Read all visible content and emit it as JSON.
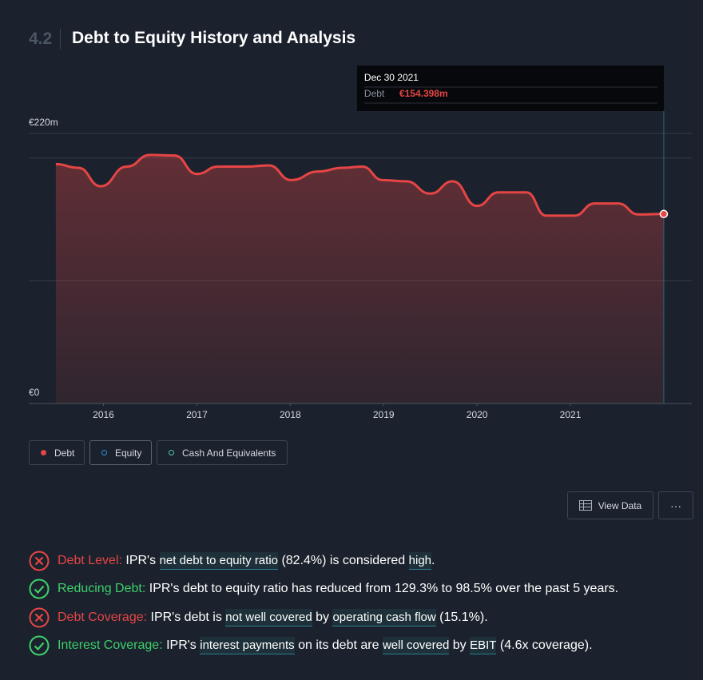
{
  "header": {
    "number": "4.2",
    "title": "Debt to Equity History and Analysis"
  },
  "chart_data": {
    "type": "line",
    "x": [
      2015.49,
      2015.73,
      2015.97,
      2016.25,
      2016.5,
      2016.76,
      2017.0,
      2017.23,
      2017.53,
      2017.77,
      2018.01,
      2018.3,
      2018.56,
      2018.77,
      2018.99,
      2019.24,
      2019.5,
      2019.74,
      2020.0,
      2020.23,
      2020.53,
      2020.74,
      2021.04,
      2021.26,
      2021.51,
      2021.73,
      2022.0
    ],
    "series": [
      {
        "name": "Debt",
        "color": "#e64545",
        "values": [
          195,
          192,
          177,
          193,
          202.5,
          202,
          187,
          193,
          193,
          194,
          182,
          189,
          192,
          193,
          182,
          181,
          171,
          181,
          161,
          172,
          172,
          153,
          153,
          163,
          163,
          154,
          154.398
        ]
      },
      {
        "name": "Equity",
        "color": "#2e8bdf",
        "visible": false
      },
      {
        "name": "Cash And Equivalents",
        "color": "#4ec9b0",
        "visible": false
      }
    ],
    "xlim": [
      2015.2,
      2022.3
    ],
    "xticks": [
      2016,
      2017,
      2018,
      2019,
      2020,
      2021
    ],
    "ylim": [
      0,
      220
    ],
    "yticks": [
      {
        "value": 0,
        "label": "€0"
      },
      {
        "value": 220,
        "label": "€220m"
      }
    ],
    "grid_values": [
      100,
      200
    ],
    "tooltip": {
      "date": "Dec 30 2021",
      "series_label": "Debt",
      "value_label": "€154.398m"
    }
  },
  "buttons": {
    "view_data": "View Data",
    "more": "···"
  },
  "statements": [
    {
      "status": "fail",
      "label": "Debt Level:",
      "parts": [
        {
          "text": " IPR's "
        },
        {
          "text": "net debt to equity ratio",
          "link": true
        },
        {
          "text": " (82.4%) is considered "
        },
        {
          "text": "high",
          "link": true
        },
        {
          "text": "."
        }
      ]
    },
    {
      "status": "pass",
      "label": "Reducing Debt:",
      "parts": [
        {
          "text": " IPR's debt to equity ratio has reduced from 129.3% to 98.5% over the past 5 years."
        }
      ]
    },
    {
      "status": "fail",
      "label": "Debt Coverage:",
      "parts": [
        {
          "text": " IPR's debt is "
        },
        {
          "text": "not well covered",
          "link": true
        },
        {
          "text": " by "
        },
        {
          "text": "operating cash flow",
          "link": true
        },
        {
          "text": " (15.1%)."
        }
      ]
    },
    {
      "status": "pass",
      "label": "Interest Coverage:",
      "parts": [
        {
          "text": " IPR's "
        },
        {
          "text": "interest payments",
          "link": true
        },
        {
          "text": " on its debt are "
        },
        {
          "text": "well covered",
          "link": true
        },
        {
          "text": " by "
        },
        {
          "text": "EBIT",
          "link": true
        },
        {
          "text": " (4.6x coverage)."
        }
      ]
    }
  ]
}
